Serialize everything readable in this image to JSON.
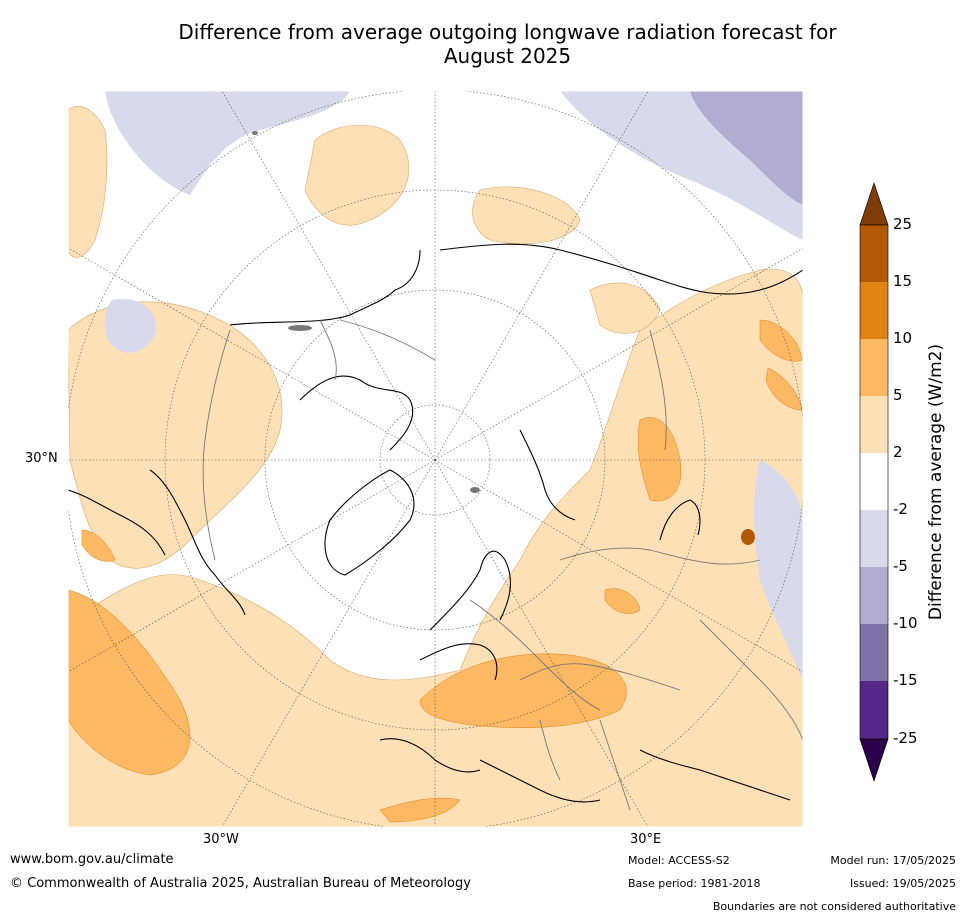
{
  "title_line1": "Difference from average outgoing longwave radiation forecast for",
  "title_line2": "August 2025",
  "lat_label": "30°N",
  "lon_labels": [
    "30°W",
    "30°E"
  ],
  "colorbar": {
    "label": "Difference from average (W/m2)",
    "ticks": [
      "25",
      "15",
      "10",
      "5",
      "2",
      "-2",
      "-5",
      "-10",
      "-15",
      "-25"
    ],
    "colors": [
      "#7f3b08",
      "#b35806",
      "#e08214",
      "#fdb863",
      "#fee0b6",
      "#ffffff",
      "#d8daeb",
      "#b2abd2",
      "#8073ac",
      "#542788",
      "#2d004b"
    ]
  },
  "footer": {
    "website": "www.bom.gov.au/climate",
    "copyright": "© Commonwealth of Australia 2025, Australian Bureau of Meteorology",
    "model": "Model: ACCESS-S2",
    "base_period": "Base period: 1981-2018",
    "model_run": "Model run: 17/05/2025",
    "issued": "Issued: 19/05/2025",
    "disclaimer": "Boundaries are not considered authoritative"
  }
}
